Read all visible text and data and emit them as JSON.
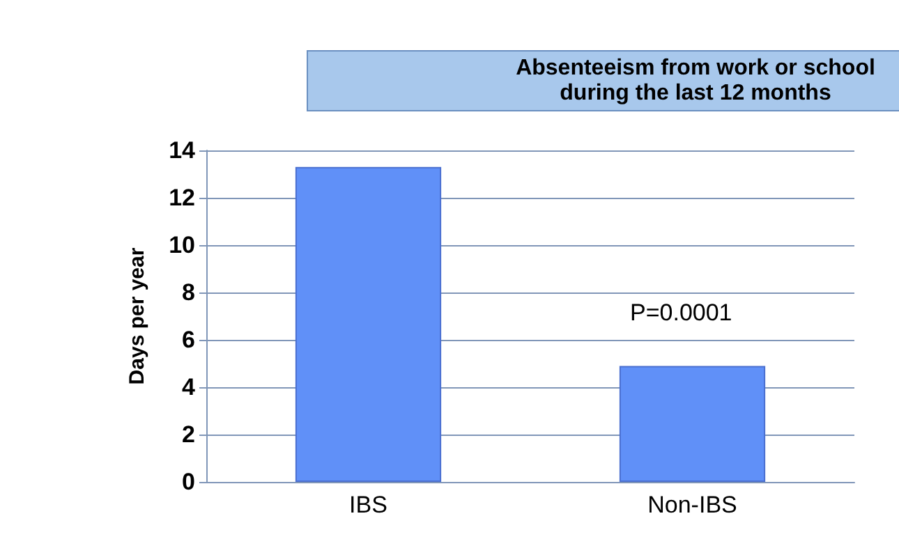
{
  "chart_data": {
    "type": "bar",
    "title": "Absenteeism from work or school\nduring the last 12 months",
    "ylabel": "Days per year",
    "categories": [
      "IBS",
      "Non-IBS"
    ],
    "values": [
      13.3,
      4.9
    ],
    "color": "#6090f8",
    "ylim": [
      0,
      14
    ],
    "yticks": [
      0,
      2,
      4,
      6,
      8,
      10,
      12,
      14
    ],
    "grid": "y",
    "annotations": [
      "P=0.0001"
    ]
  }
}
